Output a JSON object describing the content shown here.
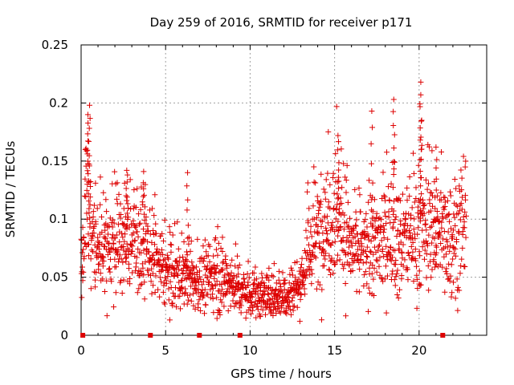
{
  "chart_data": {
    "type": "scatter",
    "title": "Day 259 of 2016, SRMTID for receiver p171",
    "xlabel": "GPS time / hours",
    "ylabel": "SRMTID / TECUs",
    "xlim": [
      0,
      24
    ],
    "ylim": [
      0,
      0.25
    ],
    "x_ticks": [
      0,
      5,
      10,
      15,
      20
    ],
    "y_ticks": [
      0,
      0.05,
      0.1,
      0.15,
      0.2,
      0.25
    ],
    "x_tick_labels": [
      "0",
      "5",
      "10",
      "15",
      "20"
    ],
    "y_tick_labels": [
      "0",
      "0.05",
      "0.1",
      "0.15",
      "0.2",
      "0.25"
    ],
    "grid": true,
    "marker": "+",
    "color": "#dd0000",
    "baseline_markers_x": [
      0.1,
      4.1,
      7.0,
      9.4,
      21.4
    ],
    "profile": [
      {
        "x": 0.0,
        "y": 0.055
      },
      {
        "x": 0.3,
        "y": 0.12
      },
      {
        "x": 0.6,
        "y": 0.09
      },
      {
        "x": 1.0,
        "y": 0.075
      },
      {
        "x": 2.0,
        "y": 0.08
      },
      {
        "x": 3.0,
        "y": 0.085
      },
      {
        "x": 4.0,
        "y": 0.07
      },
      {
        "x": 5.0,
        "y": 0.055
      },
      {
        "x": 6.0,
        "y": 0.05
      },
      {
        "x": 7.0,
        "y": 0.045
      },
      {
        "x": 8.0,
        "y": 0.05
      },
      {
        "x": 9.0,
        "y": 0.045
      },
      {
        "x": 10.0,
        "y": 0.035
      },
      {
        "x": 11.0,
        "y": 0.035
      },
      {
        "x": 12.0,
        "y": 0.035
      },
      {
        "x": 13.0,
        "y": 0.045
      },
      {
        "x": 13.5,
        "y": 0.075
      },
      {
        "x": 14.0,
        "y": 0.085
      },
      {
        "x": 15.0,
        "y": 0.11
      },
      {
        "x": 16.0,
        "y": 0.075
      },
      {
        "x": 17.0,
        "y": 0.07
      },
      {
        "x": 18.0,
        "y": 0.085
      },
      {
        "x": 19.0,
        "y": 0.08
      },
      {
        "x": 20.0,
        "y": 0.09
      },
      {
        "x": 21.0,
        "y": 0.09
      },
      {
        "x": 22.0,
        "y": 0.085
      },
      {
        "x": 22.8,
        "y": 0.09
      }
    ],
    "data_x_range": [
      0.0,
      22.8
    ],
    "n_points": 1700,
    "notable_peaks": [
      {
        "x": 0.5,
        "y": 0.198
      },
      {
        "x": 0.4,
        "y": 0.19
      },
      {
        "x": 2.7,
        "y": 0.142
      },
      {
        "x": 3.7,
        "y": 0.141
      },
      {
        "x": 6.3,
        "y": 0.14
      },
      {
        "x": 15.2,
        "y": 0.172
      },
      {
        "x": 17.2,
        "y": 0.193
      },
      {
        "x": 18.5,
        "y": 0.203
      },
      {
        "x": 20.1,
        "y": 0.218
      },
      {
        "x": 20.1,
        "y": 0.207
      },
      {
        "x": 21.0,
        "y": 0.162
      }
    ]
  }
}
